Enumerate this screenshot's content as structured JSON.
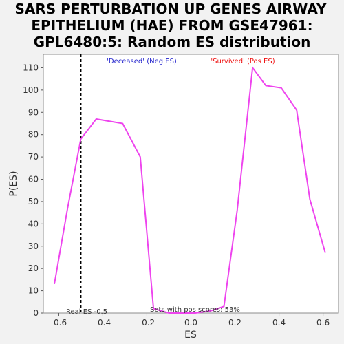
{
  "chart_data": {
    "type": "line",
    "title_lines": [
      "SARS PERTURBATION UP GENES AIRWAY",
      "EPITHELIUM (HAE) FROM GSE47961:",
      "GPL6480:5: Random ES distribution"
    ],
    "xlabel": "ES",
    "ylabel": "P(ES)",
    "xlim": [
      -0.67,
      0.67
    ],
    "ylim": [
      0,
      116
    ],
    "xticks": [
      -0.6,
      -0.4,
      -0.2,
      0.0,
      0.2,
      0.4,
      0.6
    ],
    "xtick_labels": [
      "-0.6",
      "-0.4",
      "-0.2",
      "0.0",
      "0.2",
      "0.4",
      "0.6"
    ],
    "yticks": [
      0,
      10,
      20,
      30,
      40,
      50,
      60,
      70,
      80,
      90,
      100,
      110
    ],
    "ytick_labels": [
      "0",
      "10",
      "20",
      "30",
      "40",
      "50",
      "60",
      "70",
      "80",
      "90",
      "100",
      "110"
    ],
    "grid": false,
    "series": [
      {
        "color": "#ee44ee",
        "x": [
          -0.62,
          -0.56,
          -0.5,
          -0.43,
          -0.31,
          -0.23,
          -0.17,
          -0.1,
          0.02,
          0.09,
          0.15,
          0.21,
          0.28,
          0.34,
          0.41,
          0.48,
          0.54,
          0.61
        ],
        "y": [
          13,
          47,
          78,
          87,
          85,
          70,
          2,
          0,
          0,
          1,
          3,
          46,
          110,
          102,
          101,
          91,
          51,
          27
        ]
      }
    ],
    "real_es": -0.5,
    "annotations": {
      "neg": {
        "text": "'Deceased' (Neg ES)",
        "color": "#2222cc"
      },
      "pos": {
        "text": "'Survived' (Pos ES)",
        "color": "#ee1111"
      },
      "real_es": "Real ES -0.5",
      "pos_scores": "Sets with pos scores: 53%"
    }
  }
}
